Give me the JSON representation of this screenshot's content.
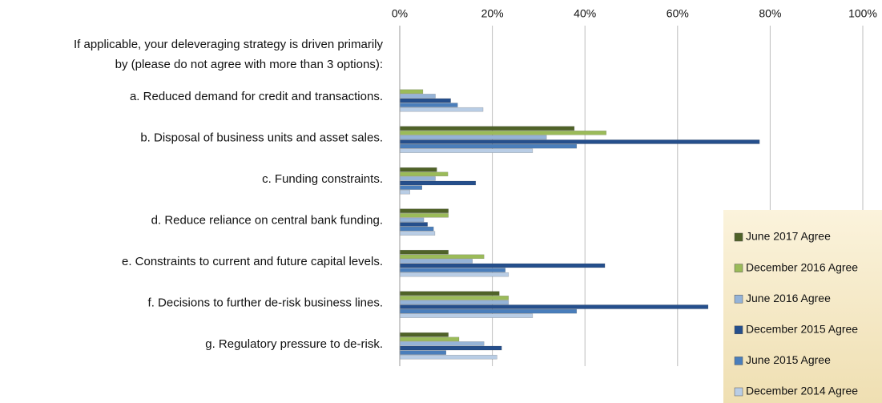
{
  "chart_data": {
    "type": "hbar",
    "question_lines": [
      "If applicable, your deleveraging strategy is driven primarily",
      "by (please do not agree with more than 3 options):"
    ],
    "categories": [
      "a. Reduced demand for credit and transactions.",
      "b. Disposal of business units and asset sales.",
      "c. Funding constraints.",
      "d. Reduce reliance on central bank funding.",
      "e. Constraints to current and future capital levels.",
      "f. Decisions to further de-risk business lines.",
      "g. Regulatory pressure to de-risk."
    ],
    "series": [
      {
        "name": "June 2017 Agree",
        "color": "#4f6228",
        "values": [
          0,
          37.7,
          8,
          10.5,
          10.5,
          21.5,
          10.5
        ]
      },
      {
        "name": "December 2016 Agree",
        "color": "#9bbb59",
        "values": [
          5,
          44.6,
          10.4,
          10.5,
          18.2,
          23.5,
          12.8
        ]
      },
      {
        "name": "June 2016 Agree",
        "color": "#95b3d7",
        "values": [
          7.7,
          31.7,
          7.7,
          5.2,
          15.7,
          23.5,
          18.2
        ]
      },
      {
        "name": "December 2015 Agree",
        "color": "#254f8c",
        "values": [
          11,
          77.7,
          16.4,
          6,
          44.3,
          66.6,
          22
        ]
      },
      {
        "name": "June 2015 Agree",
        "color": "#4a7ebb",
        "values": [
          12.5,
          38.2,
          4.8,
          7.3,
          22.8,
          38.2,
          10
        ]
      },
      {
        "name": "December 2014 Agree",
        "color": "#b9cde5",
        "values": [
          18,
          28.7,
          2.2,
          7.6,
          23.5,
          28.7,
          21
        ]
      }
    ],
    "xlim": [
      0,
      100
    ],
    "xticks": [
      {
        "value": 0,
        "label": "0%"
      },
      {
        "value": 20,
        "label": "20%"
      },
      {
        "value": 40,
        "label": "40%"
      },
      {
        "value": 60,
        "label": "60%"
      },
      {
        "value": 80,
        "label": "80%"
      },
      {
        "value": 100,
        "label": "100%"
      }
    ],
    "grid": true,
    "legend": "bottom-right"
  }
}
